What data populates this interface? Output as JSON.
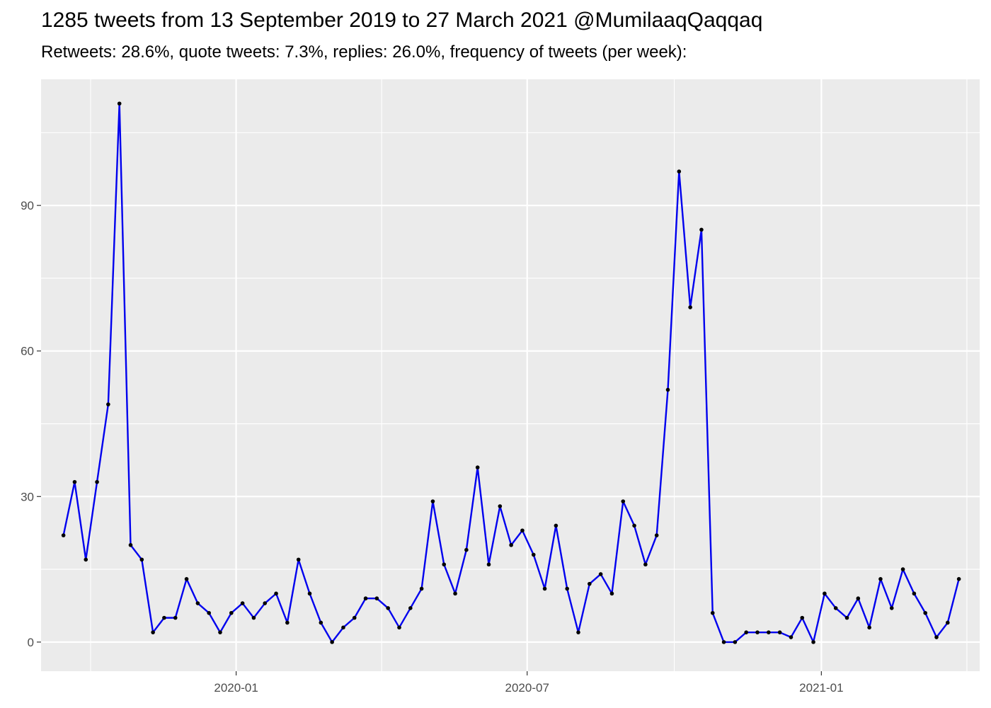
{
  "title": "1285 tweets from 13 September 2019 to 27 March 2021 @MumilaaqQaqqaq",
  "subtitle": "Retweets: 28.6%, quote tweets: 7.3%, replies: 26.0%, frequency of tweets (per week):",
  "colors": {
    "panel": "#ebebeb",
    "grid": "#ffffff",
    "line": "#0000ee",
    "point": "#000000",
    "tick_text": "#4d4d4d"
  },
  "chart_data": {
    "type": "line",
    "title": "1285 tweets from 13 September 2019 to 27 March 2021 @MumilaaqQaqqaq",
    "subtitle": "Retweets: 28.6%, quote tweets: 7.3%, replies: 26.0%, frequency of tweets (per week):",
    "xlabel": "",
    "ylabel": "",
    "grid": true,
    "legend": "none",
    "x_start": "2019-09-15",
    "x_step_days": 7,
    "xlim": [
      "2019-09-01",
      "2021-04-10"
    ],
    "ylim": [
      -6,
      116
    ],
    "y_ticks": [
      0,
      30,
      60,
      90
    ],
    "x_ticks": [
      {
        "date": "2020-01-01",
        "label": "2020-01"
      },
      {
        "date": "2020-07-01",
        "label": "2020-07"
      },
      {
        "date": "2021-01-01",
        "label": "2021-01"
      }
    ],
    "series": [
      {
        "values": [
          22,
          33,
          17,
          33,
          49,
          111,
          20,
          17,
          2,
          5,
          5,
          13,
          8,
          6,
          2,
          6,
          8,
          5,
          8,
          10,
          4,
          17,
          10,
          4,
          0,
          3,
          5,
          9,
          9,
          7,
          3,
          7,
          11,
          29,
          16,
          10,
          19,
          36,
          16,
          28,
          20,
          23,
          18,
          11,
          24,
          11,
          2,
          12,
          14,
          10,
          29,
          24,
          16,
          22,
          52,
          97,
          69,
          85,
          6,
          0,
          0,
          2,
          2,
          2,
          2,
          1,
          5,
          0,
          10,
          7,
          5,
          9,
          3,
          13,
          7,
          15,
          10,
          6,
          1,
          4,
          13
        ]
      }
    ]
  }
}
